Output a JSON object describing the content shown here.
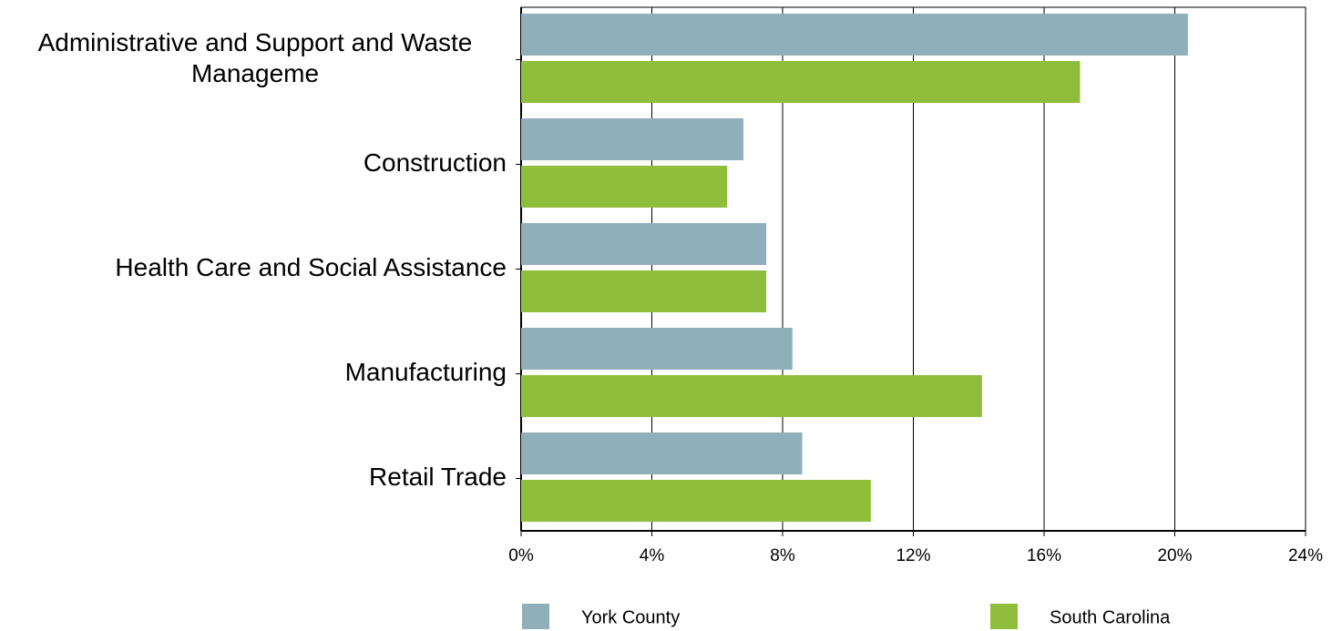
{
  "chart_data": {
    "type": "barh",
    "categories": [
      "Administrative and Support and Waste Manageme",
      "Construction",
      "Health Care and Social Assistance",
      "Manufacturing",
      "Retail Trade"
    ],
    "series": [
      {
        "name": "York County",
        "color": "#8fafba",
        "values": [
          20.4,
          6.8,
          7.5,
          8.3,
          8.6
        ]
      },
      {
        "name": "South Carolina",
        "color": "#8fbe3c",
        "values": [
          17.1,
          6.3,
          7.5,
          14.1,
          10.7
        ]
      }
    ],
    "xlim": [
      0,
      24
    ],
    "xticks": [
      {
        "value": 0,
        "label": "0%"
      },
      {
        "value": 4,
        "label": "4%"
      },
      {
        "value": 8,
        "label": "8%"
      },
      {
        "value": 12,
        "label": "12%"
      },
      {
        "value": 16,
        "label": "16%"
      },
      {
        "value": 20,
        "label": "20%"
      },
      {
        "value": 24,
        "label": "24%"
      }
    ],
    "grid": true,
    "legend": "bottom"
  }
}
